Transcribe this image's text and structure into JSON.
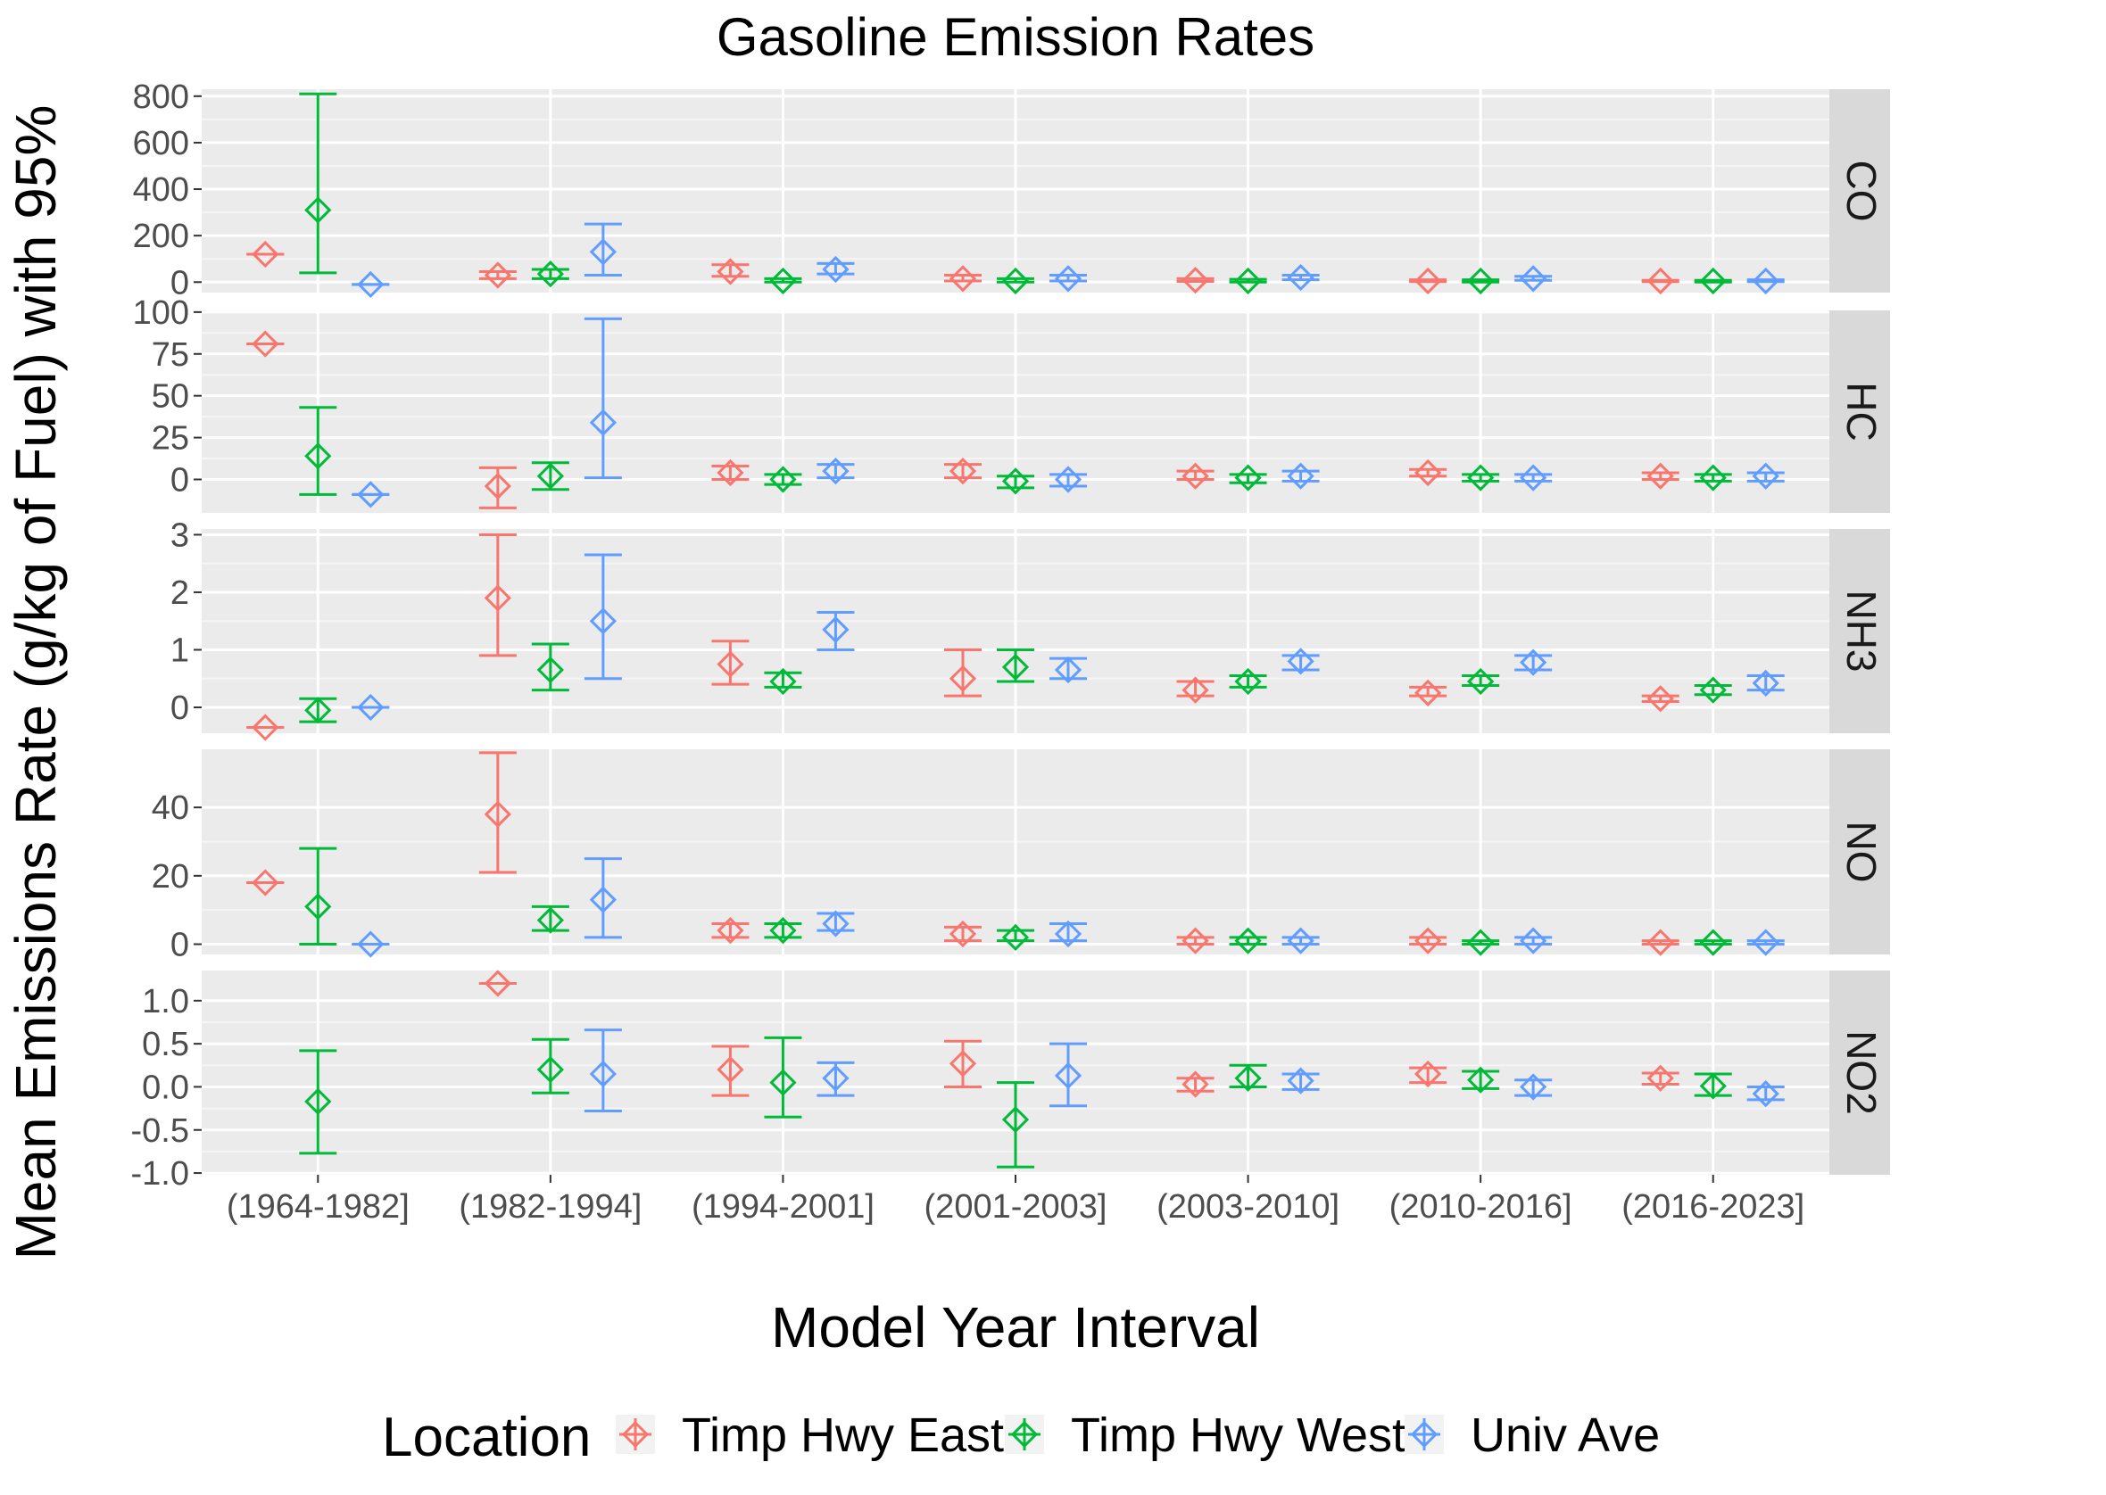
{
  "chart_data": {
    "type": "scatter",
    "title": "Gasoline Emission Rates",
    "xlabel": "Model Year Interval",
    "ylabel": "Mean Emissions Rate (g/kg of Fuel) with 95%",
    "categories": [
      "(1964-1982]",
      "(1982-1994]",
      "(1994-2001]",
      "(2001-2003]",
      "(2003-2010]",
      "(2010-2016]",
      "(2016-2023]"
    ],
    "legend": {
      "title": "Location",
      "position": "bottom",
      "items": [
        "Timp Hwy East",
        "Timp Hwy West",
        "Univ Ave"
      ]
    },
    "colors": {
      "Timp Hwy East": "#F8766D",
      "Timp Hwy West": "#00BA38",
      "Univ Ave": "#619CFF"
    },
    "panels": [
      {
        "label": "CO",
        "ylim": [
          -45,
          830
        ],
        "yticks": [
          0,
          200,
          400,
          600,
          800
        ],
        "ytick_labels": [
          "0",
          "200",
          "400",
          "600",
          "800"
        ],
        "series": [
          {
            "name": "Timp Hwy East",
            "mean": [
              120,
              30,
              45,
              15,
              8,
              5,
              5
            ],
            "low": [
              120,
              15,
              25,
              5,
              3,
              2,
              2
            ],
            "high": [
              120,
              45,
              75,
              30,
              15,
              10,
              8
            ]
          },
          {
            "name": "Timp Hwy West",
            "mean": [
              310,
              35,
              5,
              5,
              5,
              5,
              5
            ],
            "low": [
              40,
              15,
              0,
              0,
              0,
              0,
              0
            ],
            "high": [
              810,
              55,
              15,
              15,
              12,
              10,
              8
            ]
          },
          {
            "name": "Univ Ave",
            "mean": [
              -10,
              130,
              55,
              15,
              20,
              15,
              5
            ],
            "low": [
              -10,
              30,
              35,
              5,
              10,
              8,
              2
            ],
            "high": [
              -10,
              250,
              80,
              30,
              30,
              25,
              10
            ]
          }
        ]
      },
      {
        "label": "HC",
        "ylim": [
          -20,
          101
        ],
        "yticks": [
          0,
          25,
          50,
          75,
          100
        ],
        "ytick_labels": [
          "0",
          "25",
          "50",
          "75",
          "100"
        ],
        "series": [
          {
            "name": "Timp Hwy East",
            "mean": [
              81,
              -4,
              4,
              5,
              2,
              4,
              2
            ],
            "low": [
              81,
              -17,
              0,
              1,
              0,
              2,
              0
            ],
            "high": [
              81,
              7,
              8,
              9,
              5,
              6,
              4
            ]
          },
          {
            "name": "Timp Hwy West",
            "mean": [
              14,
              2,
              0,
              -1,
              1,
              1,
              1
            ],
            "low": [
              -9,
              -6,
              -3,
              -5,
              -2,
              -1,
              -1
            ],
            "high": [
              43,
              10,
              3,
              2,
              3,
              3,
              3
            ]
          },
          {
            "name": "Univ Ave",
            "mean": [
              -9,
              34,
              5,
              0,
              2,
              1,
              2
            ],
            "low": [
              -9,
              1,
              1,
              -4,
              -1,
              -1,
              -1
            ],
            "high": [
              -9,
              96,
              9,
              3,
              5,
              3,
              4
            ]
          }
        ]
      },
      {
        "label": "NH3",
        "ylim": [
          -0.45,
          3.1
        ],
        "yticks": [
          0,
          1,
          2,
          3
        ],
        "ytick_labels": [
          "0",
          "1",
          "2",
          "3"
        ],
        "series": [
          {
            "name": "Timp Hwy East",
            "mean": [
              -0.35,
              1.9,
              0.75,
              0.5,
              0.3,
              0.25,
              0.15
            ],
            "low": [
              -0.35,
              0.9,
              0.4,
              0.2,
              0.2,
              0.2,
              0.1
            ],
            "high": [
              -0.35,
              3.0,
              1.15,
              1.0,
              0.45,
              0.35,
              0.2
            ]
          },
          {
            "name": "Timp Hwy West",
            "mean": [
              -0.05,
              0.65,
              0.45,
              0.7,
              0.45,
              0.45,
              0.3
            ],
            "low": [
              -0.25,
              0.3,
              0.35,
              0.45,
              0.35,
              0.38,
              0.22
            ],
            "high": [
              0.15,
              1.1,
              0.6,
              1.0,
              0.55,
              0.55,
              0.38
            ]
          },
          {
            "name": "Univ Ave",
            "mean": [
              0.0,
              1.5,
              1.35,
              0.65,
              0.8,
              0.78,
              0.42
            ],
            "low": [
              0.0,
              0.5,
              1.0,
              0.5,
              0.65,
              0.65,
              0.3
            ],
            "high": [
              0.0,
              2.65,
              1.65,
              0.85,
              0.9,
              0.9,
              0.55
            ]
          }
        ]
      },
      {
        "label": "NO",
        "ylim": [
          -3,
          57
        ],
        "yticks": [
          0,
          20,
          40
        ],
        "ytick_labels": [
          "0",
          "20",
          "40"
        ],
        "series": [
          {
            "name": "Timp Hwy East",
            "mean": [
              18,
              38,
              4,
              3,
              1,
              1,
              0.5
            ],
            "low": [
              18,
              21,
              2,
              1,
              0,
              0,
              0
            ],
            "high": [
              18,
              56,
              6,
              5,
              2,
              2,
              1
            ]
          },
          {
            "name": "Timp Hwy West",
            "mean": [
              11,
              7,
              4,
              2,
              1,
              0.5,
              0.5
            ],
            "low": [
              0,
              4,
              2,
              1,
              0,
              0,
              0
            ],
            "high": [
              28,
              11,
              6,
              4,
              2,
              1,
              1
            ]
          },
          {
            "name": "Univ Ave",
            "mean": [
              0,
              13,
              6,
              3,
              1,
              1,
              0.5
            ],
            "low": [
              0,
              2,
              4,
              1,
              0,
              0,
              0
            ],
            "high": [
              0,
              25,
              9,
              6,
              2,
              2,
              1
            ]
          }
        ]
      },
      {
        "label": "NO2",
        "ylim": [
          -1.02,
          1.35
        ],
        "yticks": [
          -1.0,
          -0.5,
          0.0,
          0.5,
          1.0
        ],
        "ytick_labels": [
          "-1.0",
          "-0.5",
          "0.0",
          "0.5",
          "1.0"
        ],
        "series": [
          {
            "name": "Timp Hwy East",
            "mean": [
              null,
              1.2,
              0.2,
              0.27,
              0.03,
              0.15,
              0.1
            ],
            "low": [
              null,
              1.2,
              -0.1,
              0.0,
              -0.05,
              0.05,
              0.03
            ],
            "high": [
              null,
              1.2,
              0.47,
              0.53,
              0.1,
              0.22,
              0.16
            ]
          },
          {
            "name": "Timp Hwy West",
            "mean": [
              -0.17,
              0.2,
              0.05,
              -0.38,
              0.1,
              0.08,
              0.01
            ],
            "low": [
              -0.77,
              -0.07,
              -0.35,
              -0.93,
              0.0,
              -0.02,
              -0.1
            ],
            "high": [
              0.42,
              0.55,
              0.57,
              0.05,
              0.25,
              0.18,
              0.15
            ]
          },
          {
            "name": "Univ Ave",
            "mean": [
              null,
              0.15,
              0.1,
              0.13,
              0.07,
              0.0,
              -0.08
            ],
            "low": [
              null,
              -0.28,
              -0.1,
              -0.22,
              -0.03,
              -0.1,
              -0.15
            ],
            "high": [
              null,
              0.66,
              0.28,
              0.5,
              0.15,
              0.08,
              0.0
            ]
          }
        ]
      }
    ]
  }
}
